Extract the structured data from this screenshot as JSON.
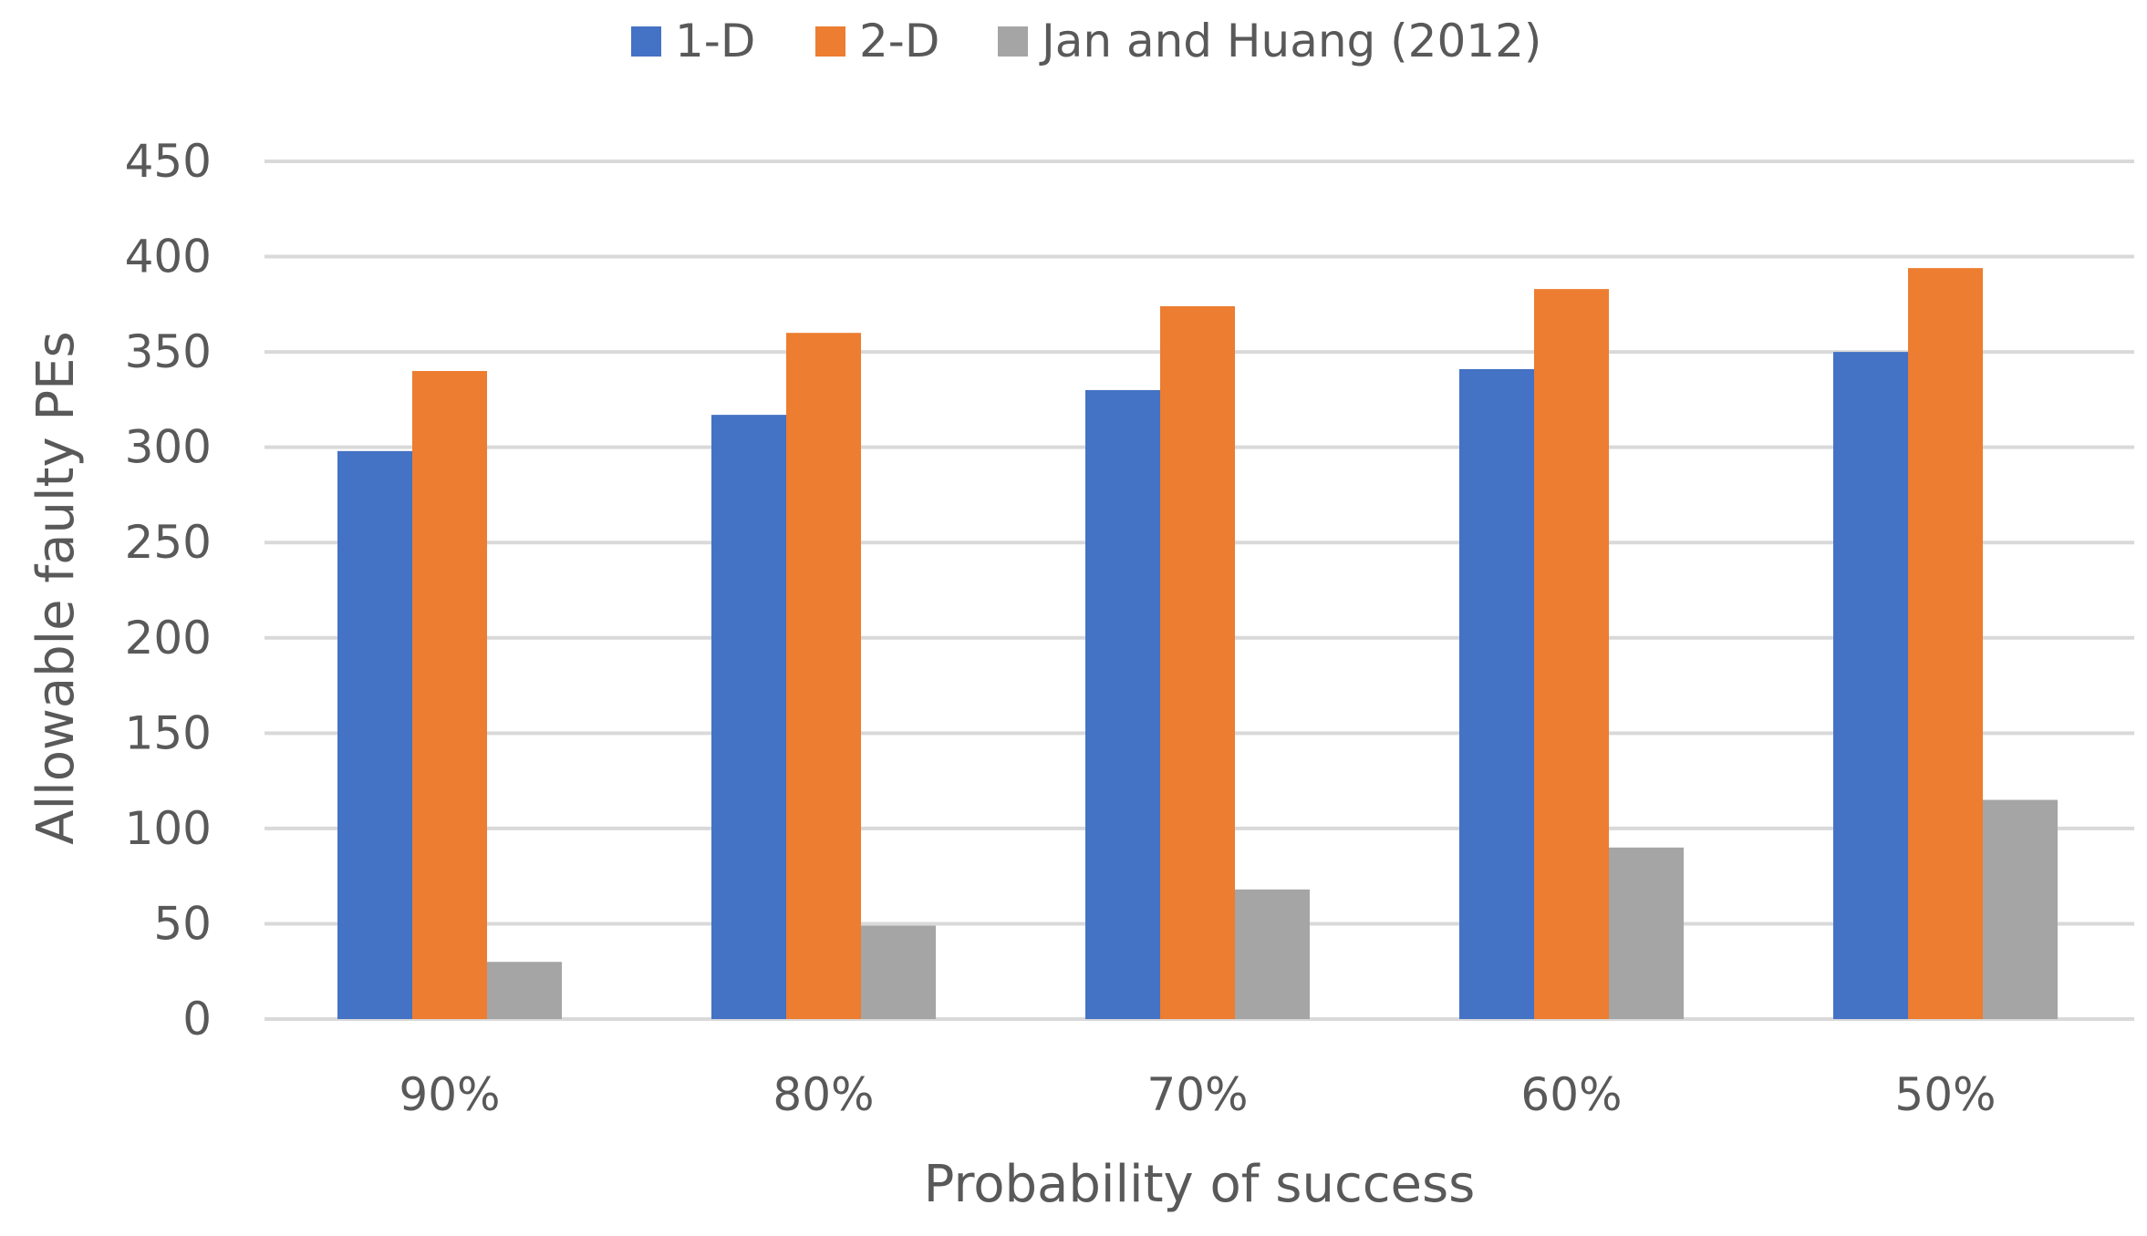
{
  "chart_data": {
    "type": "bar",
    "title": "",
    "xlabel": "Probability of success",
    "ylabel": "Allowable faulty PEs",
    "categories": [
      "90%",
      "80%",
      "70%",
      "60%",
      "50%"
    ],
    "series": [
      {
        "name": "1-D",
        "color": "#4472C4",
        "values": [
          298,
          317,
          330,
          341,
          350
        ]
      },
      {
        "name": "2-D",
        "color": "#ED7D31",
        "values": [
          340,
          360,
          374,
          383,
          394
        ]
      },
      {
        "name": "Jan and Huang (2012)",
        "color": "#A5A5A5",
        "values": [
          30,
          49,
          68,
          90,
          115
        ]
      }
    ],
    "ylim": [
      0,
      450
    ],
    "yticks": [
      0,
      50,
      100,
      150,
      200,
      250,
      300,
      350,
      400,
      450
    ],
    "grid": true,
    "legend_position": "top"
  }
}
